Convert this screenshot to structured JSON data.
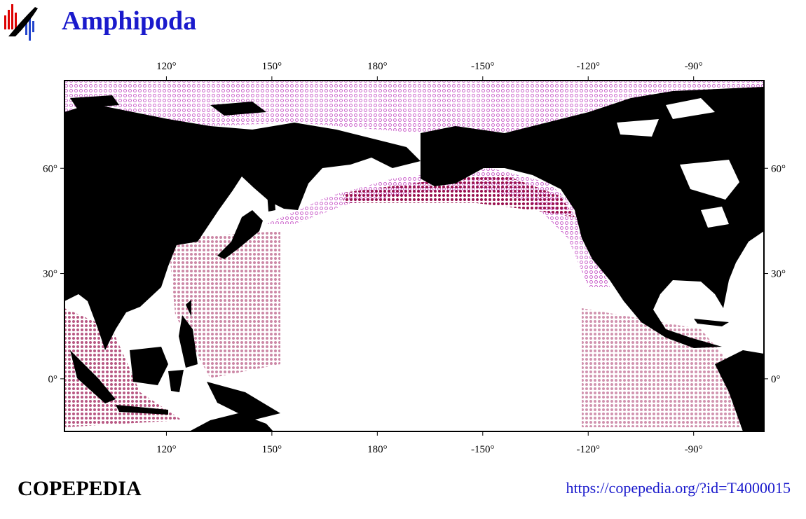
{
  "header": {
    "title": "Amphipoda"
  },
  "map": {
    "lonlim": [
      91,
      -70
    ],
    "latlim": [
      -15,
      85
    ],
    "lon_ticks": [
      {
        "value": 120,
        "label": "120°"
      },
      {
        "value": 150,
        "label": "150°"
      },
      {
        "value": 180,
        "label": "180°"
      },
      {
        "value": -150,
        "label": "-150°"
      },
      {
        "value": -120,
        "label": "-120°"
      },
      {
        "value": -90,
        "label": "-90°"
      }
    ],
    "lat_ticks": [
      {
        "value": 60,
        "label": "60°"
      },
      {
        "value": 30,
        "label": "30°"
      },
      {
        "value": 0,
        "label": "0°"
      }
    ]
  },
  "footer": {
    "brand": "COPEPEDIA",
    "url": "https://copepedia.org/?id=T4000015"
  }
}
